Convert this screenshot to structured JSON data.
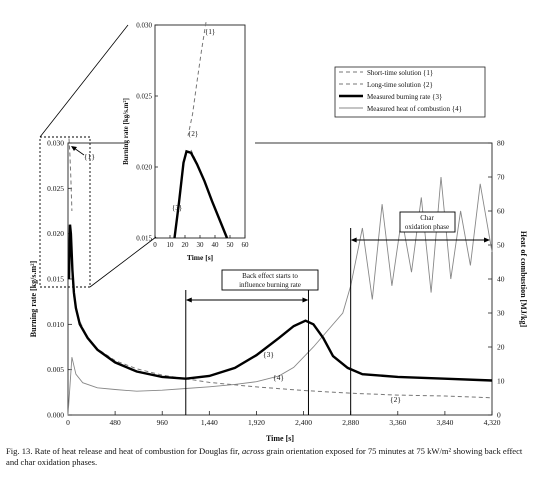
{
  "caption": {
    "prefix": "Fig. 13.  Rate of heat release and heat of combustion for Douglas fir,",
    "italic": "across",
    "suffix": "grain orientation exposed for 75 minutes at 75 kW/m² showing back effect and char oxidation phases."
  },
  "chart_data": [
    {
      "type": "line",
      "xlabel": "Time [s]",
      "ylabel": "Burning rate [kg/s.m²]",
      "y2label": "Heat of combustion [MJ/kg]",
      "xlim": [
        0,
        4320
      ],
      "ylim": [
        0,
        0.03
      ],
      "y2lim": [
        0,
        80
      ],
      "x_ticks": [
        "0",
        "480",
        "960",
        "1,440",
        "1,920",
        "2,400",
        "2,880",
        "3,360",
        "3,840",
        "4,320"
      ],
      "y_ticks": [
        "0.000",
        "0.005",
        "0.010",
        "0.015",
        "0.020",
        "0.025",
        "0.030"
      ],
      "y2_ticks": [
        "0",
        "10",
        "20",
        "30",
        "40",
        "50",
        "60",
        "70",
        "80"
      ],
      "legend": [
        "Short-time solution {1}",
        "Long-time solution {2}",
        "Measured burning rate {3}",
        "Measured heat of combustion {4}"
      ],
      "legend_position": "top-right",
      "series": [
        {
          "name": "Short-time solution {1}",
          "axis": "left",
          "style": "dashed",
          "x": [
            10,
            20,
            30,
            40
          ],
          "y": [
            0.0305,
            0.0285,
            0.026,
            0.0225
          ]
        },
        {
          "name": "Long-time solution {2}",
          "axis": "left",
          "style": "dashed",
          "x": [
            40,
            60,
            100,
            200,
            300,
            480,
            700,
            960,
            1440,
            1920,
            2400,
            2880,
            3360,
            3840,
            4320
          ],
          "y": [
            0.0155,
            0.013,
            0.0108,
            0.0085,
            0.0073,
            0.006,
            0.0051,
            0.0044,
            0.0036,
            0.0031,
            0.0027,
            0.0024,
            0.0022,
            0.0021,
            0.0019
          ]
        },
        {
          "name": "Measured burning rate {3}",
          "axis": "left",
          "style": "solid-thick",
          "x": [
            10,
            20,
            30,
            45,
            60,
            80,
            120,
            200,
            300,
            480,
            700,
            960,
            1200,
            1440,
            1700,
            1920,
            2150,
            2300,
            2420,
            2500,
            2600,
            2700,
            2850,
            3000,
            3360,
            3840,
            4320
          ],
          "y": [
            0.015,
            0.021,
            0.02,
            0.016,
            0.0135,
            0.0118,
            0.01,
            0.0085,
            0.0072,
            0.0058,
            0.0048,
            0.0042,
            0.004,
            0.0043,
            0.0052,
            0.0066,
            0.0085,
            0.0098,
            0.0104,
            0.01,
            0.0085,
            0.0065,
            0.0052,
            0.0045,
            0.0042,
            0.004,
            0.0038
          ]
        },
        {
          "name": "Measured heat of combustion {4}",
          "axis": "right",
          "style": "solid-thin",
          "x": [
            0,
            40,
            80,
            150,
            300,
            480,
            700,
            960,
            1200,
            1440,
            1700,
            1920,
            2150,
            2300,
            2500,
            2650,
            2800,
            2880,
            3000,
            3100,
            3200,
            3300,
            3400,
            3500,
            3600,
            3700,
            3800,
            3900,
            4000,
            4100,
            4200,
            4320
          ],
          "y": [
            0,
            17,
            12,
            9.5,
            8,
            7.5,
            7,
            7.3,
            7.8,
            8.3,
            9,
            9.8,
            11.5,
            14,
            20,
            25,
            30,
            38,
            55,
            34,
            62,
            38,
            58,
            42,
            64,
            36,
            70,
            40,
            60,
            44,
            68,
            48
          ]
        }
      ],
      "annotations": {
        "label_1": "{1}",
        "label_2": "{2}",
        "label_3": "{3}",
        "label_4": "{4}",
        "back_effect": "Back effect starts to influence burning rate",
        "char_oxidation": "Char oxidation phase"
      }
    },
    {
      "type": "line",
      "xlabel": "Time [s]",
      "ylabel": "Burning rate [kg/s.m²]",
      "xlim": [
        0,
        60
      ],
      "ylim": [
        0.015,
        0.03
      ],
      "x_ticks": [
        "0",
        "10",
        "20",
        "30",
        "40",
        "50",
        "60"
      ],
      "y_ticks": [
        "0.015",
        "0.020",
        "0.025",
        "0.030"
      ],
      "series": [
        {
          "name": "{1}",
          "style": "dashed",
          "x": [
            34,
            31,
            28,
            25,
            22
          ],
          "y": [
            0.0302,
            0.0282,
            0.026,
            0.0237,
            0.0222
          ]
        },
        {
          "name": "{2}",
          "style": "dashed",
          "x": [
            24,
            27,
            30
          ],
          "y": [
            0.0212,
            0.0205,
            0.0198
          ]
        },
        {
          "name": "{3}",
          "style": "solid-thick",
          "x": [
            13,
            16,
            19,
            21,
            24,
            28,
            33,
            38,
            43,
            48
          ],
          "y": [
            0.015,
            0.0175,
            0.0203,
            0.0211,
            0.021,
            0.0202,
            0.019,
            0.0176,
            0.0163,
            0.015
          ]
        }
      ],
      "annotations": {
        "label_1": "{1}",
        "label_2": "{2}",
        "label_3": "{3}"
      }
    }
  ]
}
